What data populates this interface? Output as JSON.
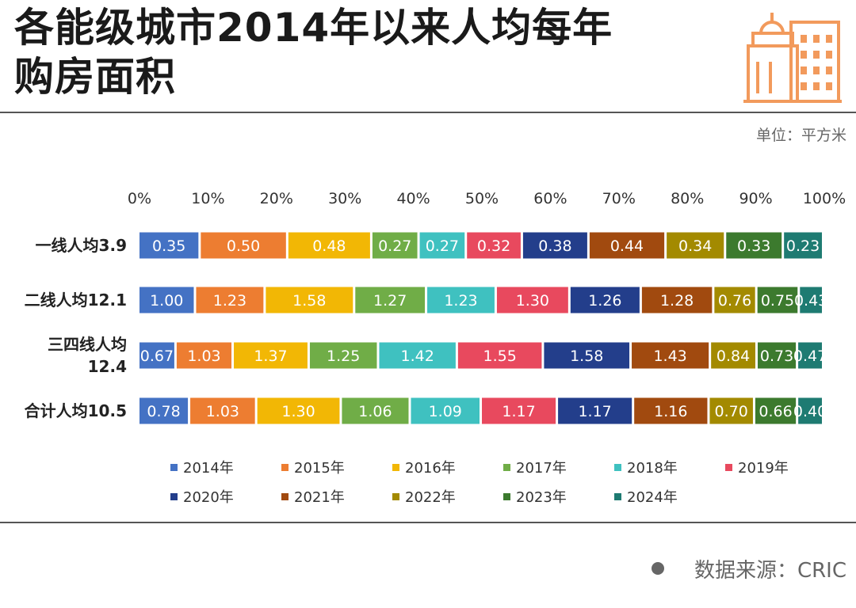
{
  "title_line1": "各能级城市2014年以来人均每年",
  "title_line2": "购房面积",
  "unit": "单位：平方米",
  "source": "数据来源：CRIC",
  "chart_data": {
    "type": "bar",
    "orientation": "horizontal",
    "stacked": "percent",
    "x_ticks": [
      "0%",
      "10%",
      "20%",
      "30%",
      "40%",
      "50%",
      "60%",
      "70%",
      "80%",
      "90%",
      "100%"
    ],
    "xlim": [
      0,
      100
    ],
    "categories": [
      [
        "一线人均3.9"
      ],
      [
        "二线人均12.1"
      ],
      [
        "三四线人均",
        "12.4"
      ],
      [
        "合计人均10.5"
      ]
    ],
    "series": [
      {
        "name": "2014年",
        "color": "#4472C4",
        "values": [
          0.35,
          1.0,
          0.67,
          0.78
        ]
      },
      {
        "name": "2015年",
        "color": "#ED7D31",
        "values": [
          0.5,
          1.23,
          1.03,
          1.03
        ]
      },
      {
        "name": "2016年",
        "color": "#F2B705",
        "values": [
          0.48,
          1.58,
          1.37,
          1.3
        ]
      },
      {
        "name": "2017年",
        "color": "#70AD47",
        "values": [
          0.27,
          1.27,
          1.25,
          1.06
        ]
      },
      {
        "name": "2018年",
        "color": "#3FC1C0",
        "values": [
          0.27,
          1.23,
          1.42,
          1.09
        ]
      },
      {
        "name": "2019年",
        "color": "#E8495E",
        "values": [
          0.32,
          1.3,
          1.55,
          1.17
        ]
      },
      {
        "name": "2020年",
        "color": "#233E8B",
        "values": [
          0.38,
          1.26,
          1.58,
          1.17
        ]
      },
      {
        "name": "2021年",
        "color": "#A14A0F",
        "values": [
          0.44,
          1.28,
          1.43,
          1.16
        ]
      },
      {
        "name": "2022年",
        "color": "#A38A00",
        "values": [
          0.34,
          0.76,
          0.84,
          0.7
        ]
      },
      {
        "name": "2023年",
        "color": "#3C7A2E",
        "values": [
          0.33,
          0.75,
          0.73,
          0.66
        ]
      },
      {
        "name": "2024年",
        "color": "#1E7B72",
        "values": [
          0.23,
          0.43,
          0.47,
          0.4
        ]
      }
    ],
    "value_labels": [
      [
        "0.35",
        "0.50",
        "0.48",
        "0.27",
        "0.27",
        "0.32",
        "0.38",
        "0.44",
        "0.34",
        "0.33",
        "0.23"
      ],
      [
        "1.00",
        "1.23",
        "1.58",
        "1.27",
        "1.23",
        "1.30",
        "1.26",
        "1.28",
        "0.76",
        "0.75",
        "0.43"
      ],
      [
        "0.67",
        "1.03",
        "1.37",
        "1.25",
        "1.42",
        "1.55",
        "1.58",
        "1.43",
        "0.84",
        "0.73",
        "0.47"
      ],
      [
        "0.78",
        "1.03",
        "1.30",
        "1.06",
        "1.09",
        "1.17",
        "1.17",
        "1.16",
        "0.70",
        "0.66",
        "0.40"
      ]
    ],
    "legend_position": "bottom"
  }
}
